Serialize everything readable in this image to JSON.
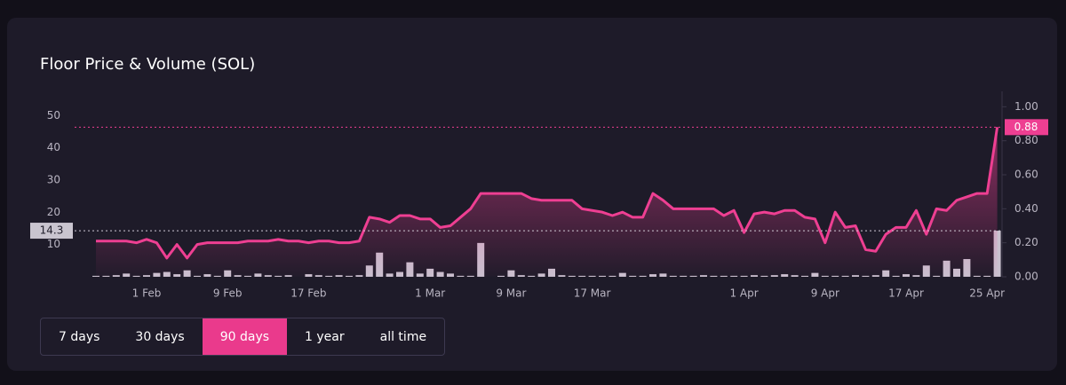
{
  "chart_data": {
    "type": "combo",
    "title": "Floor Price & Volume (SOL)",
    "categories": [
      null,
      null,
      null,
      null,
      null,
      "1 Feb",
      null,
      null,
      null,
      null,
      null,
      null,
      null,
      "9 Feb",
      null,
      null,
      null,
      null,
      null,
      null,
      null,
      "17 Feb",
      null,
      null,
      null,
      null,
      null,
      null,
      null,
      null,
      null,
      null,
      null,
      "1 Mar",
      null,
      null,
      null,
      null,
      null,
      null,
      null,
      "9 Mar",
      null,
      null,
      null,
      null,
      null,
      null,
      null,
      "17 Mar",
      null,
      null,
      null,
      null,
      null,
      null,
      null,
      null,
      null,
      null,
      null,
      null,
      null,
      null,
      "1 Apr",
      null,
      null,
      null,
      null,
      null,
      null,
      null,
      "9 Apr",
      null,
      null,
      null,
      null,
      null,
      null,
      null,
      "17 Apr",
      null,
      null,
      null,
      null,
      null,
      null,
      null,
      "25 Apr",
      null
    ],
    "series": [
      {
        "type": "bar",
        "axis": "y",
        "color": "#c9c1cf",
        "values": [
          0.3,
          0.3,
          0.5,
          1,
          0.3,
          0.5,
          1.2,
          1.5,
          0.8,
          2,
          0.3,
          0.8,
          0.3,
          2,
          0.5,
          0.3,
          1,
          0.5,
          0.3,
          0.5,
          0,
          0.8,
          0.5,
          0.3,
          0.5,
          0.3,
          0.5,
          3.5,
          7.5,
          1,
          1.5,
          4.5,
          1,
          2.5,
          1.5,
          1,
          0.3,
          0.3,
          10.5,
          0,
          0.3,
          2,
          0.5,
          0.3,
          1,
          2.5,
          0.5,
          0.3,
          0.3,
          0.3,
          0.3,
          0.3,
          1.2,
          0.3,
          0.3,
          0.8,
          1,
          0.3,
          0.3,
          0.3,
          0.5,
          0.3,
          0.3,
          0.3,
          0.3,
          0.5,
          0.3,
          0.5,
          0.8,
          0.5,
          0.3,
          1.2,
          0.3,
          0.3,
          0.3,
          0.5,
          0.3,
          0.5,
          2,
          0.3,
          0.8,
          0.5,
          3.5,
          0.3,
          5,
          2.5,
          5.5,
          0.3,
          0.3,
          14.3
        ]
      },
      {
        "type": "line",
        "axis": "y2",
        "color": "#ee3f92",
        "values": [
          0.21,
          0.21,
          0.21,
          0.21,
          0.2,
          0.22,
          0.2,
          0.11,
          0.19,
          0.11,
          0.19,
          0.2,
          0.2,
          0.2,
          0.2,
          0.21,
          0.21,
          0.21,
          0.22,
          0.21,
          0.21,
          0.2,
          0.21,
          0.21,
          0.2,
          0.2,
          0.21,
          0.35,
          0.34,
          0.32,
          0.36,
          0.36,
          0.34,
          0.34,
          0.29,
          0.3,
          0.35,
          0.4,
          0.49,
          0.49,
          0.49,
          0.49,
          0.49,
          0.46,
          0.45,
          0.45,
          0.45,
          0.45,
          0.4,
          0.39,
          0.38,
          0.36,
          0.38,
          0.35,
          0.35,
          0.49,
          0.45,
          0.4,
          0.4,
          0.4,
          0.4,
          0.4,
          0.36,
          0.39,
          0.26,
          0.37,
          0.38,
          0.37,
          0.39,
          0.39,
          0.35,
          0.34,
          0.2,
          0.38,
          0.29,
          0.3,
          0.16,
          0.15,
          0.25,
          0.29,
          0.29,
          0.39,
          0.25,
          0.4,
          0.39,
          0.45,
          0.47,
          0.49,
          0.49,
          0.88
        ]
      }
    ],
    "ylim": [
      0,
      57
    ],
    "yticks": [
      10,
      20,
      30,
      40,
      50
    ],
    "y2lim": [
      0,
      1.08
    ],
    "y2ticks": [
      {
        "value": 0,
        "label": "0.00"
      },
      {
        "value": 0.2,
        "label": "0.20"
      },
      {
        "value": 0.4,
        "label": "0.40"
      },
      {
        "value": 0.6,
        "label": "0.60"
      },
      {
        "value": 0.8,
        "label": "0.80"
      },
      {
        "value": 1,
        "label": "1.00"
      }
    ]
  },
  "time_ranges": {
    "options": [
      "7 days",
      "30 days",
      "90 days",
      "1 year",
      "all time"
    ],
    "selected": 2
  }
}
